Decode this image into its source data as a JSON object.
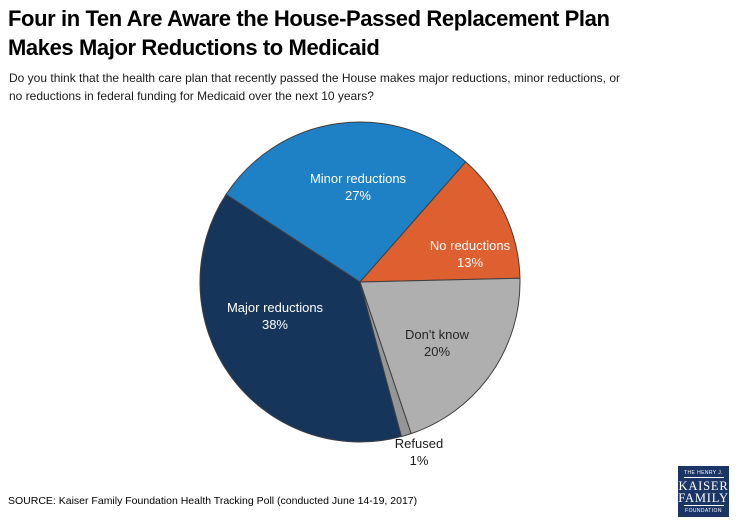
{
  "header": {
    "title_line1": "Four in Ten Are Aware the House-Passed Replacement Plan",
    "title_line2": "Makes Major Reductions to Medicaid",
    "subtitle_line1": "Do you think that the health care plan that recently passed the House makes major reductions, minor reductions, or",
    "subtitle_line2": "no reductions in federal funding for Medicaid over the next 10 years?"
  },
  "chart_data": {
    "type": "pie",
    "title": "Four in Ten Are Aware the House-Passed Replacement Plan Makes Major Reductions to Medicaid",
    "question": "Do you think that the health care plan that recently passed the House makes major reductions, minor reductions, or no reductions in federal funding for Medicaid over the next 10 years?",
    "legend": "none",
    "start_angle_deg": 165,
    "outline_color": "#3F3F3F",
    "slices": [
      {
        "label": "Major reductions",
        "value": 38,
        "value_label": "38%",
        "color": "#16355B",
        "text_color": "#FFFFFF"
      },
      {
        "label": "Minor reductions",
        "value": 27,
        "value_label": "27%",
        "color": "#1E81C6",
        "text_color": "#FFFFFF"
      },
      {
        "label": "No reductions",
        "value": 13,
        "value_label": "13%",
        "color": "#DE5F2F",
        "text_color": "#FFFFFF"
      },
      {
        "label": "Don't know",
        "value": 20,
        "value_label": "20%",
        "color": "#AFAFAF",
        "text_color": "#262626"
      },
      {
        "label": "Refused",
        "value": 1,
        "value_label": "1%",
        "color": "#969696",
        "text_color": "#1A1A1A"
      }
    ]
  },
  "footer": {
    "source": "SOURCE: Kaiser Family Foundation Health Tracking Poll (conducted June 14-19, 2017)",
    "logo": {
      "line1": "THE HENRY J.",
      "line2": "KAISER",
      "line3": "FAMILY",
      "line4": "FOUNDATION",
      "bg_color": "#1B3666"
    }
  }
}
